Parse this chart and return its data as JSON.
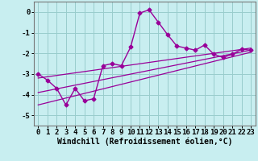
{
  "x": [
    0,
    1,
    2,
    3,
    4,
    5,
    6,
    7,
    8,
    9,
    10,
    11,
    12,
    13,
    14,
    15,
    16,
    17,
    18,
    19,
    20,
    21,
    22,
    23
  ],
  "y_main": [
    -3.0,
    -3.3,
    -3.7,
    -4.5,
    -3.7,
    -4.3,
    -4.2,
    -2.6,
    -2.5,
    -2.6,
    -1.7,
    -0.05,
    0.1,
    -0.5,
    -1.1,
    -1.65,
    -1.75,
    -1.85,
    -1.6,
    -2.05,
    -2.2,
    -2.05,
    -1.8,
    -1.85
  ],
  "line1_x": [
    0,
    23
  ],
  "line1_y": [
    -3.2,
    -1.75
  ],
  "line2_x": [
    0,
    23
  ],
  "line2_y": [
    -3.9,
    -1.85
  ],
  "line3_x": [
    0,
    23
  ],
  "line3_y": [
    -4.5,
    -1.95
  ],
  "bg_color": "#c8eef0",
  "grid_color": "#99cccc",
  "line_color": "#990099",
  "marker": "D",
  "markersize": 2.5,
  "linewidth": 1.0,
  "xlim": [
    -0.5,
    23.5
  ],
  "ylim": [
    -5.5,
    0.5
  ],
  "yticks": [
    0,
    -1,
    -2,
    -3,
    -4,
    -5
  ],
  "xticks": [
    0,
    1,
    2,
    3,
    4,
    5,
    6,
    7,
    8,
    9,
    10,
    11,
    12,
    13,
    14,
    15,
    16,
    17,
    18,
    19,
    20,
    21,
    22,
    23
  ],
  "xlabel": "Windchill (Refroidissement éolien,°C)",
  "xlabel_fontsize": 7,
  "tick_fontsize": 6.5
}
